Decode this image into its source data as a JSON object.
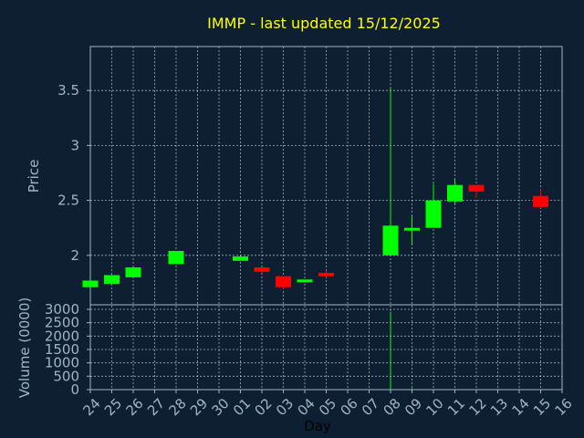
{
  "chart_data": {
    "type": "candlestick",
    "title": "IMMP - last updated 15/12/2025",
    "xlabel": "Day",
    "ylabel": "Price",
    "volume_label": "Volume (0000)",
    "colors": {
      "background": "#0f1f33",
      "axis": "#a0b4c8",
      "grid": "#c8d2dc",
      "title": "#ffff00",
      "up": "#00ff00",
      "down": "#ff0000"
    },
    "price_ylim": [
      1.55,
      3.9
    ],
    "price_ticks": [
      "2",
      "2.5",
      "3",
      "3.5"
    ],
    "volume_ylim": [
      0,
      3000
    ],
    "volume_ticks": [
      "0",
      "500",
      "1000",
      "1500",
      "2000",
      "2500",
      "3000"
    ],
    "days": [
      "24",
      "25",
      "26",
      "27",
      "28",
      "29",
      "30",
      "01",
      "02",
      "03",
      "04",
      "05",
      "06",
      "07",
      "08",
      "09",
      "10",
      "11",
      "12",
      "13",
      "14",
      "15",
      "16"
    ],
    "candles": [
      {
        "day": "24",
        "open": 1.71,
        "high": 1.77,
        "low": 1.71,
        "close": 1.77,
        "volume": 0
      },
      {
        "day": "25",
        "open": 1.74,
        "high": 1.82,
        "low": 1.74,
        "close": 1.82,
        "volume": 0
      },
      {
        "day": "26",
        "open": 1.8,
        "high": 1.9,
        "low": 1.8,
        "close": 1.89,
        "volume": 0
      },
      {
        "day": "28",
        "open": 1.92,
        "high": 2.04,
        "low": 1.92,
        "close": 2.04,
        "volume": 0
      },
      {
        "day": "01",
        "open": 1.95,
        "high": 2.0,
        "low": 1.95,
        "close": 1.99,
        "volume": 0
      },
      {
        "day": "02",
        "open": 1.89,
        "high": 1.89,
        "low": 1.84,
        "close": 1.85,
        "volume": 0
      },
      {
        "day": "03",
        "open": 1.81,
        "high": 1.81,
        "low": 1.69,
        "close": 1.71,
        "volume": 0
      },
      {
        "day": "04",
        "open": 1.76,
        "high": 1.78,
        "low": 1.76,
        "close": 1.78,
        "volume": 0
      },
      {
        "day": "05",
        "open": 1.84,
        "high": 1.86,
        "low": 1.8,
        "close": 1.81,
        "volume": 0
      },
      {
        "day": "08",
        "open": 2.0,
        "high": 3.52,
        "low": 2.0,
        "close": 2.27,
        "volume": 2900
      },
      {
        "day": "09",
        "open": 2.23,
        "high": 2.36,
        "low": 2.1,
        "close": 2.25,
        "volume": 50
      },
      {
        "day": "10",
        "open": 2.25,
        "high": 2.65,
        "low": 2.25,
        "close": 2.5,
        "volume": 0
      },
      {
        "day": "11",
        "open": 2.49,
        "high": 2.69,
        "low": 2.47,
        "close": 2.64,
        "volume": 0
      },
      {
        "day": "12",
        "open": 2.64,
        "high": 2.64,
        "low": 2.52,
        "close": 2.58,
        "volume": 0
      },
      {
        "day": "15",
        "open": 2.54,
        "high": 2.6,
        "low": 2.43,
        "close": 2.44,
        "volume": 0
      }
    ]
  }
}
